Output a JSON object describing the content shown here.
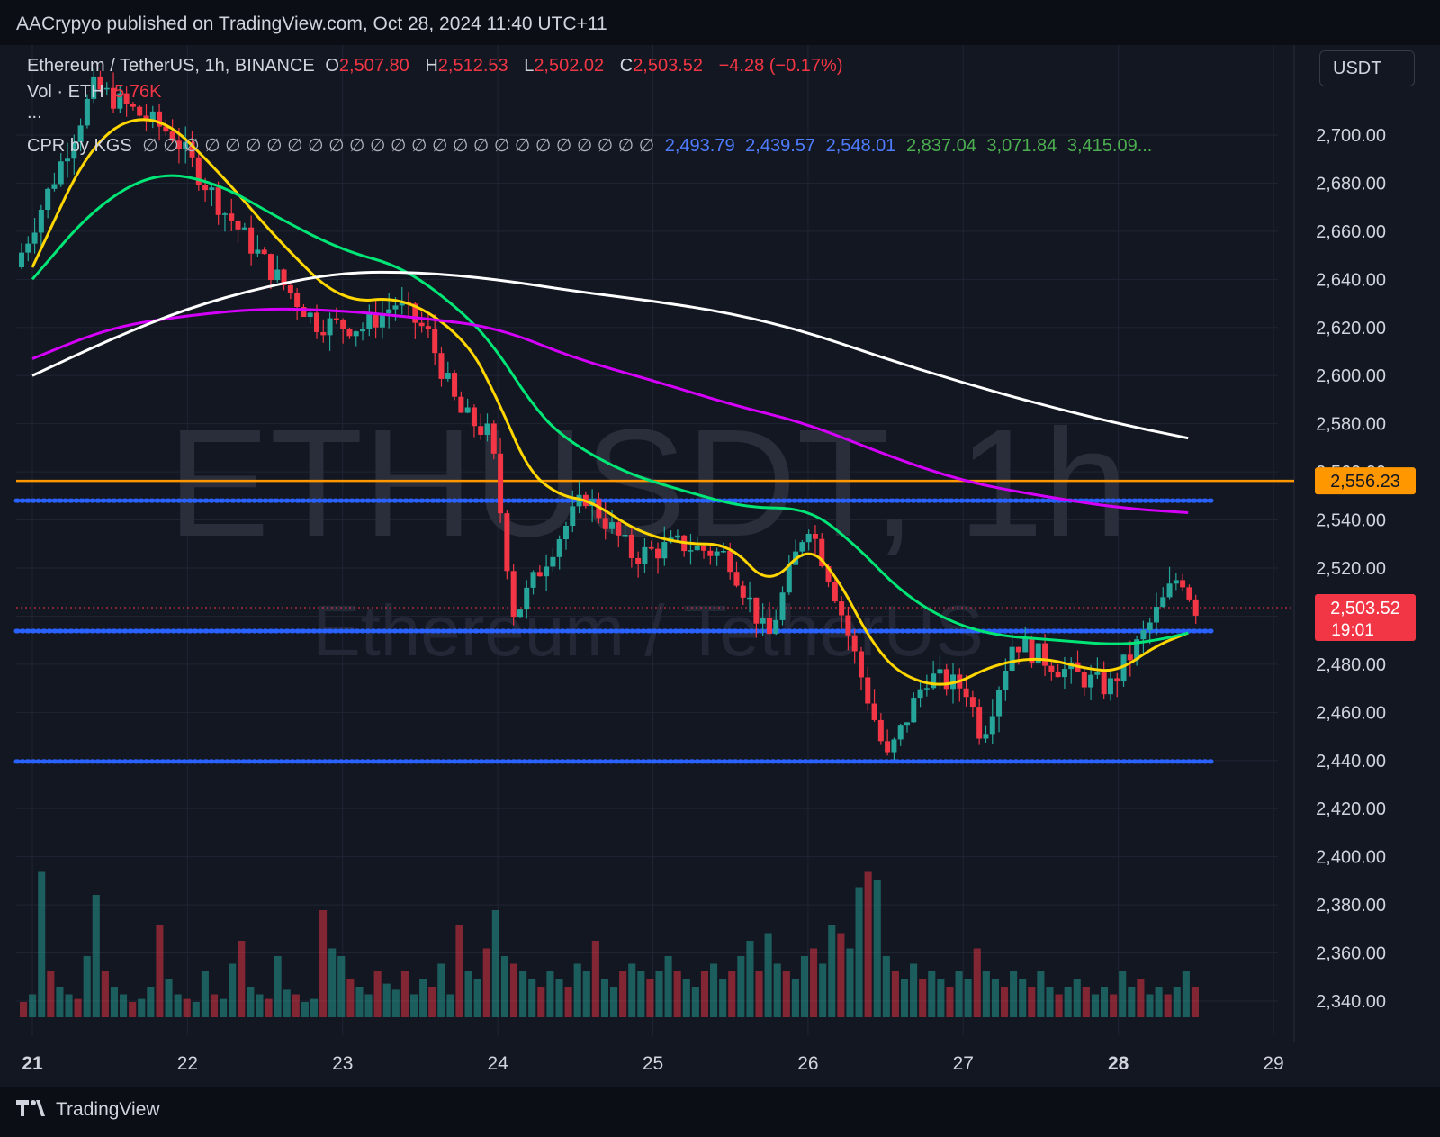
{
  "header": {
    "publisher": "AACrypyo published on TradingView.com, Oct 28, 2024 11:40 UTC+11"
  },
  "legend": {
    "symbol": "Ethereum / TetherUS, 1h, BINANCE",
    "o_label": "O",
    "o_value": "2,507.80",
    "h_label": "H",
    "h_value": "2,512.53",
    "l_label": "L",
    "l_value": "2,502.02",
    "c_label": "C",
    "c_value": "2,503.52",
    "change": "−4.28 (−0.17%)",
    "vol_label": "Vol · ETH",
    "vol_value": "5.76K",
    "ellipsis": "...",
    "cpr_label": "CPR by KGS",
    "cpr_empty": "∅ ∅ ∅ ∅ ∅ ∅ ∅ ∅ ∅ ∅ ∅ ∅ ∅ ∅ ∅ ∅ ∅ ∅ ∅ ∅ ∅ ∅ ∅ ∅ ∅",
    "cpr_v1": "2,493.79",
    "cpr_v2": "2,439.57",
    "cpr_v3": "2,548.01",
    "cpr_v4": "2,837.04",
    "cpr_v5": "3,071.84",
    "cpr_v6": "3,415.09..."
  },
  "currency_button": "USDT",
  "watermark": {
    "main": "ETHUSDT, 1h",
    "sub": "Ethereum / TetherUS"
  },
  "footer": {
    "brand": "TradingView"
  },
  "colors": {
    "up": "#26a69a",
    "down": "#f23645",
    "ema_yellow": "#ffd600",
    "ema_green": "#00e676",
    "ma_magenta": "#d500f9",
    "ma_white": "#ffffff",
    "cpr_blue": "#2962ff",
    "resistance_orange": "#ff9800"
  },
  "chart_data": {
    "type": "candlestick",
    "symbol": "ETHUSDT",
    "timeframe": "1h",
    "x_tick_labels": [
      "21",
      "22",
      "23",
      "24",
      "25",
      "26",
      "27",
      "28",
      "29"
    ],
    "y_tick_labels": [
      "2,700.00",
      "2,680.00",
      "2,660.00",
      "2,640.00",
      "2,620.00",
      "2,600.00",
      "2,580.00",
      "2,560.00",
      "2,540.00",
      "2,520.00",
      "2,500.00",
      "2,480.00",
      "2,460.00",
      "2,440.00",
      "2,420.00",
      "2,400.00",
      "2,380.00",
      "2,360.00",
      "2,340.00"
    ],
    "y_ticks": [
      2700,
      2680,
      2660,
      2640,
      2620,
      2600,
      2580,
      2560,
      2540,
      2520,
      2500,
      2480,
      2460,
      2440,
      2420,
      2400,
      2380,
      2360,
      2340
    ],
    "ylim": [
      2325,
      2720
    ],
    "xlim_days": [
      21,
      29.2
    ],
    "horizontal_lines": [
      {
        "value": 2556.23,
        "label": "2,556.23",
        "color": "#ff9800",
        "style": "solid"
      },
      {
        "value": 2548.01,
        "color": "#2962ff",
        "style": "dotted"
      },
      {
        "value": 2493.79,
        "color": "#2962ff",
        "style": "dotted"
      },
      {
        "value": 2439.57,
        "color": "#2962ff",
        "style": "dotted"
      }
    ],
    "last_price": {
      "value": 2503.52,
      "label": "2,503.52",
      "countdown": "19:01"
    },
    "key_points": [
      {
        "day": 21.0,
        "close": 2645
      },
      {
        "day": 21.5,
        "close": 2720
      },
      {
        "day": 22.0,
        "close": 2700
      },
      {
        "day": 22.3,
        "close": 2670
      },
      {
        "day": 22.6,
        "close": 2645
      },
      {
        "day": 22.9,
        "close": 2622
      },
      {
        "day": 23.2,
        "close": 2620
      },
      {
        "day": 23.4,
        "close": 2630
      },
      {
        "day": 23.6,
        "close": 2618
      },
      {
        "day": 23.8,
        "close": 2585
      },
      {
        "day": 24.0,
        "close": 2575
      },
      {
        "day": 24.15,
        "close": 2500
      },
      {
        "day": 24.4,
        "close": 2530
      },
      {
        "day": 24.6,
        "close": 2550
      },
      {
        "day": 24.9,
        "close": 2525
      },
      {
        "day": 25.2,
        "close": 2530
      },
      {
        "day": 25.5,
        "close": 2525
      },
      {
        "day": 25.75,
        "close": 2490
      },
      {
        "day": 26.0,
        "close": 2540
      },
      {
        "day": 26.15,
        "close": 2515
      },
      {
        "day": 26.4,
        "close": 2462
      },
      {
        "day": 26.5,
        "close": 2440
      },
      {
        "day": 26.75,
        "close": 2475
      },
      {
        "day": 27.0,
        "close": 2470
      },
      {
        "day": 27.1,
        "close": 2450
      },
      {
        "day": 27.3,
        "close": 2490
      },
      {
        "day": 27.6,
        "close": 2478
      },
      {
        "day": 27.9,
        "close": 2470
      },
      {
        "day": 28.1,
        "close": 2490
      },
      {
        "day": 28.35,
        "close": 2518
      },
      {
        "day": 28.45,
        "close": 2503.52
      }
    ],
    "moving_averages": [
      {
        "name": "EMA yellow",
        "color": "#ffd600",
        "points": [
          [
            21.0,
            2645
          ],
          [
            21.4,
            2700
          ],
          [
            21.8,
            2710
          ],
          [
            22.2,
            2685
          ],
          [
            22.6,
            2655
          ],
          [
            23.0,
            2630
          ],
          [
            23.4,
            2633
          ],
          [
            23.8,
            2615
          ],
          [
            24.0,
            2590
          ],
          [
            24.2,
            2560
          ],
          [
            24.4,
            2550
          ],
          [
            24.6,
            2548
          ],
          [
            24.9,
            2535
          ],
          [
            25.2,
            2530
          ],
          [
            25.5,
            2530
          ],
          [
            25.75,
            2512
          ],
          [
            26.0,
            2530
          ],
          [
            26.2,
            2515
          ],
          [
            26.4,
            2490
          ],
          [
            26.6,
            2475
          ],
          [
            26.9,
            2470
          ],
          [
            27.2,
            2480
          ],
          [
            27.5,
            2483
          ],
          [
            27.8,
            2478
          ],
          [
            28.0,
            2477
          ],
          [
            28.25,
            2488
          ],
          [
            28.45,
            2493
          ]
        ]
      },
      {
        "name": "EMA green",
        "color": "#00e676",
        "points": [
          [
            21.0,
            2640
          ],
          [
            21.4,
            2670
          ],
          [
            21.8,
            2685
          ],
          [
            22.2,
            2680
          ],
          [
            22.6,
            2665
          ],
          [
            23.0,
            2652
          ],
          [
            23.4,
            2645
          ],
          [
            23.8,
            2625
          ],
          [
            24.0,
            2610
          ],
          [
            24.2,
            2590
          ],
          [
            24.4,
            2575
          ],
          [
            24.8,
            2560
          ],
          [
            25.2,
            2552
          ],
          [
            25.6,
            2545
          ],
          [
            26.0,
            2545
          ],
          [
            26.3,
            2530
          ],
          [
            26.6,
            2510
          ],
          [
            26.9,
            2498
          ],
          [
            27.2,
            2492
          ],
          [
            27.6,
            2490
          ],
          [
            28.0,
            2488
          ],
          [
            28.25,
            2490
          ],
          [
            28.45,
            2493
          ]
        ]
      },
      {
        "name": "MA magenta",
        "color": "#d500f9",
        "points": [
          [
            21.0,
            2607
          ],
          [
            21.5,
            2620
          ],
          [
            22.0,
            2625
          ],
          [
            22.5,
            2628
          ],
          [
            23.0,
            2627
          ],
          [
            23.5,
            2624
          ],
          [
            24.0,
            2620
          ],
          [
            24.5,
            2607
          ],
          [
            25.0,
            2598
          ],
          [
            25.5,
            2588
          ],
          [
            26.0,
            2580
          ],
          [
            26.5,
            2567
          ],
          [
            27.0,
            2556
          ],
          [
            27.5,
            2550
          ],
          [
            28.0,
            2545
          ],
          [
            28.45,
            2543
          ]
        ]
      },
      {
        "name": "MA white",
        "color": "#ffffff",
        "points": [
          [
            21.0,
            2600
          ],
          [
            21.5,
            2615
          ],
          [
            22.0,
            2628
          ],
          [
            22.5,
            2637
          ],
          [
            23.0,
            2643
          ],
          [
            23.5,
            2643
          ],
          [
            24.0,
            2640
          ],
          [
            24.5,
            2635
          ],
          [
            25.0,
            2631
          ],
          [
            25.5,
            2626
          ],
          [
            26.0,
            2618
          ],
          [
            26.5,
            2607
          ],
          [
            27.0,
            2597
          ],
          [
            27.5,
            2588
          ],
          [
            28.0,
            2580
          ],
          [
            28.45,
            2574
          ]
        ]
      }
    ],
    "volume_relative": [
      0.1,
      0.15,
      0.95,
      0.3,
      0.2,
      0.15,
      0.12,
      0.4,
      0.8,
      0.3,
      0.2,
      0.15,
      0.1,
      0.12,
      0.2,
      0.6,
      0.25,
      0.15,
      0.12,
      0.1,
      0.3,
      0.15,
      0.12,
      0.35,
      0.5,
      0.2,
      0.15,
      0.12,
      0.4,
      0.18,
      0.15,
      0.1,
      0.12,
      0.7,
      0.45,
      0.4,
      0.25,
      0.2,
      0.15,
      0.3,
      0.22,
      0.18,
      0.3,
      0.15,
      0.25,
      0.2,
      0.35,
      0.15,
      0.6,
      0.3,
      0.25,
      0.45,
      0.7,
      0.4,
      0.35,
      0.3,
      0.25,
      0.2,
      0.3,
      0.25,
      0.2,
      0.35,
      0.3,
      0.5,
      0.25,
      0.2,
      0.3,
      0.35,
      0.3,
      0.25,
      0.3,
      0.4,
      0.3,
      0.25,
      0.2,
      0.3,
      0.35,
      0.25,
      0.3,
      0.4,
      0.5,
      0.3,
      0.55,
      0.35,
      0.3,
      0.25,
      0.4,
      0.45,
      0.35,
      0.6,
      0.55,
      0.45,
      0.85,
      0.95,
      0.9,
      0.4,
      0.3,
      0.25,
      0.35,
      0.25,
      0.3,
      0.25,
      0.2,
      0.3,
      0.25,
      0.45,
      0.3,
      0.25,
      0.2,
      0.3,
      0.25,
      0.2,
      0.3,
      0.2,
      0.15,
      0.2,
      0.25,
      0.2,
      0.15,
      0.2,
      0.15,
      0.3,
      0.2,
      0.25,
      0.15,
      0.2,
      0.15,
      0.2,
      0.3,
      0.2
    ]
  }
}
